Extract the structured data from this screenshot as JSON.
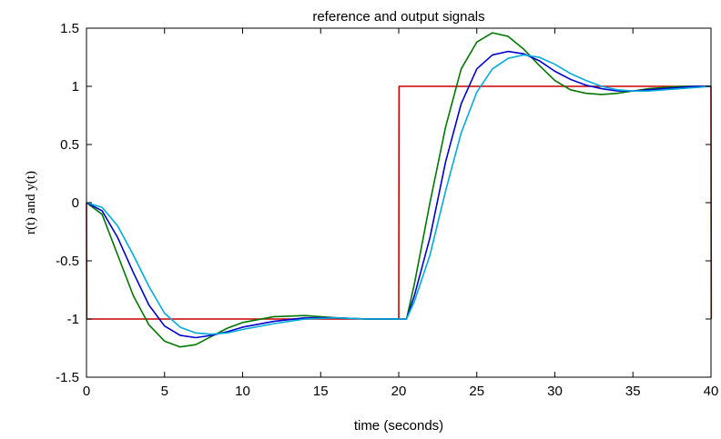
{
  "chart_data": {
    "type": "line",
    "title": "reference and output signals",
    "xlabel": "time (seconds)",
    "ylabel": "r(t) and y(t)",
    "xlim": [
      0,
      40
    ],
    "ylim": [
      -1.5,
      1.5
    ],
    "grid": false,
    "xticks": [
      0,
      5,
      10,
      15,
      20,
      25,
      30,
      35,
      40
    ],
    "yticks": [
      -1.5,
      -1,
      -0.5,
      0,
      0.5,
      1,
      1.5
    ],
    "xtick_labels": [
      "0",
      "5",
      "10",
      "15",
      "20",
      "25",
      "30",
      "35",
      "40"
    ],
    "ytick_labels": [
      "-1.5",
      "-1",
      "-0.5",
      "0",
      "0.5",
      "1",
      "1.5"
    ],
    "series": [
      {
        "color": "#cc0000",
        "x": [
          0,
          0.02,
          20,
          20.02,
          40,
          40.02
        ],
        "values": [
          0,
          -1,
          -1,
          1,
          1,
          -1
        ]
      },
      {
        "color": "#007700",
        "x": [
          0,
          1,
          2,
          3,
          4,
          5,
          6,
          7,
          8,
          9,
          10,
          12,
          14,
          16,
          18,
          20,
          20.5,
          21,
          22,
          23,
          24,
          25,
          26,
          27,
          28,
          29,
          30,
          31,
          32,
          33,
          34,
          35,
          36,
          37,
          38,
          39,
          40
        ],
        "values": [
          0,
          -0.1,
          -0.45,
          -0.8,
          -1.05,
          -1.19,
          -1.24,
          -1.22,
          -1.15,
          -1.08,
          -1.03,
          -0.98,
          -0.97,
          -0.99,
          -1.0,
          -1.0,
          -1.0,
          -0.7,
          0.0,
          0.65,
          1.15,
          1.38,
          1.46,
          1.43,
          1.32,
          1.18,
          1.05,
          0.97,
          0.94,
          0.93,
          0.94,
          0.96,
          0.98,
          0.99,
          1.0,
          1.0,
          1.0
        ]
      },
      {
        "color": "#0000cc",
        "x": [
          0,
          1,
          2,
          3,
          4,
          5,
          6,
          7,
          8,
          9,
          10,
          12,
          14,
          16,
          18,
          20,
          20.5,
          21,
          22,
          23,
          24,
          25,
          26,
          27,
          28,
          29,
          30,
          31,
          32,
          33,
          34,
          35,
          36,
          37,
          38,
          39,
          40
        ],
        "values": [
          0,
          -0.07,
          -0.3,
          -0.6,
          -0.88,
          -1.06,
          -1.14,
          -1.16,
          -1.14,
          -1.11,
          -1.07,
          -1.02,
          -0.99,
          -0.99,
          -1.0,
          -1.0,
          -1.0,
          -0.8,
          -0.3,
          0.35,
          0.85,
          1.15,
          1.27,
          1.3,
          1.28,
          1.22,
          1.13,
          1.06,
          1.01,
          0.98,
          0.96,
          0.96,
          0.97,
          0.98,
          0.99,
          1.0,
          1.0
        ]
      },
      {
        "color": "#00aadd",
        "x": [
          0,
          1,
          2,
          3,
          4,
          5,
          6,
          7,
          8,
          9,
          10,
          12,
          14,
          16,
          18,
          20,
          20.5,
          21,
          22,
          23,
          24,
          25,
          26,
          27,
          28,
          29,
          30,
          31,
          32,
          33,
          34,
          35,
          36,
          37,
          38,
          39,
          40
        ],
        "values": [
          0,
          -0.04,
          -0.2,
          -0.45,
          -0.72,
          -0.95,
          -1.07,
          -1.12,
          -1.13,
          -1.12,
          -1.09,
          -1.04,
          -1.0,
          -0.99,
          -1.0,
          -1.0,
          -1.0,
          -0.85,
          -0.45,
          0.1,
          0.6,
          0.95,
          1.15,
          1.24,
          1.27,
          1.25,
          1.19,
          1.11,
          1.05,
          1.0,
          0.97,
          0.96,
          0.96,
          0.97,
          0.98,
          0.99,
          1.0
        ]
      }
    ]
  }
}
